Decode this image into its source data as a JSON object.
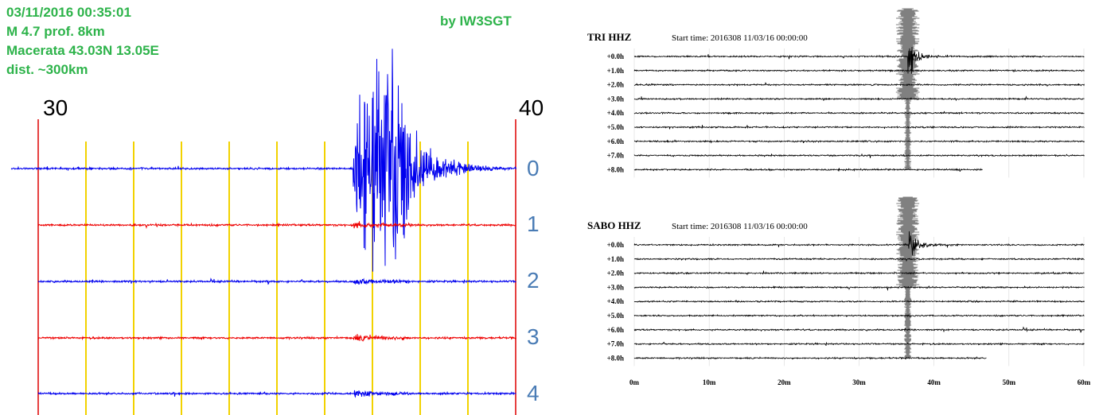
{
  "left": {
    "info_lines": [
      "03/11/2016 00:35:01",
      "M 4.7 prof. 8km",
      "Macerata 43.03N 13.05E",
      "dist. ~300km"
    ],
    "credit": "by IW3SGT",
    "minute_start_label": "30",
    "minute_end_label": "40",
    "row_labels": [
      "0",
      "1",
      "2",
      "3",
      "4"
    ],
    "colors": {
      "info_text": "#2db34a",
      "trace_blue": "#0000ee",
      "trace_red": "#ee0000",
      "minute_line": "#dd0000",
      "grid_line": "#f2d200",
      "row_label": "#4a7cb5"
    }
  },
  "chart_data": [
    {
      "type": "line",
      "title": "",
      "xlabel": "",
      "ylabel": "",
      "xlim": [
        30,
        40
      ],
      "x_ticks": [
        "30",
        "40"
      ],
      "minor_gridlines_every_min": 1,
      "series": [
        {
          "row": "0",
          "color": "#0000ee",
          "event_onset_min": 36.6,
          "peak_amplitude_rows": 3.0
        },
        {
          "row": "1",
          "color": "#ee0000"
        },
        {
          "row": "2",
          "color": "#0000ee"
        },
        {
          "row": "3",
          "color": "#ee0000"
        },
        {
          "row": "4",
          "color": "#0000ee"
        }
      ]
    },
    {
      "type": "line",
      "station": "TRI HHZ",
      "start_time": "Start time: 2016308 11/03/16 00:00:00",
      "row_labels": [
        "+0.0h",
        "+1.0h",
        "+2.0h",
        "+3.0h",
        "+4.0h",
        "+5.0h",
        "+6.0h",
        "+7.0h",
        "+8.0h"
      ],
      "event_min": 36.5,
      "last_row_end_min": 46.5
    },
    {
      "type": "line",
      "station": "SABO HHZ",
      "start_time": "Start time: 2016308 11/03/16 00:00:00",
      "row_labels": [
        "+0.0h",
        "+1.0h",
        "+2.0h",
        "+3.0h",
        "+4.0h",
        "+5.0h",
        "+6.0h",
        "+7.0h",
        "+8.0h"
      ],
      "x_ticks": [
        "0m",
        "10m",
        "20m",
        "30m",
        "40m",
        "50m",
        "60m"
      ],
      "xlim": [
        0,
        60
      ],
      "event_min": 36.5,
      "last_row_end_min": 47
    }
  ]
}
